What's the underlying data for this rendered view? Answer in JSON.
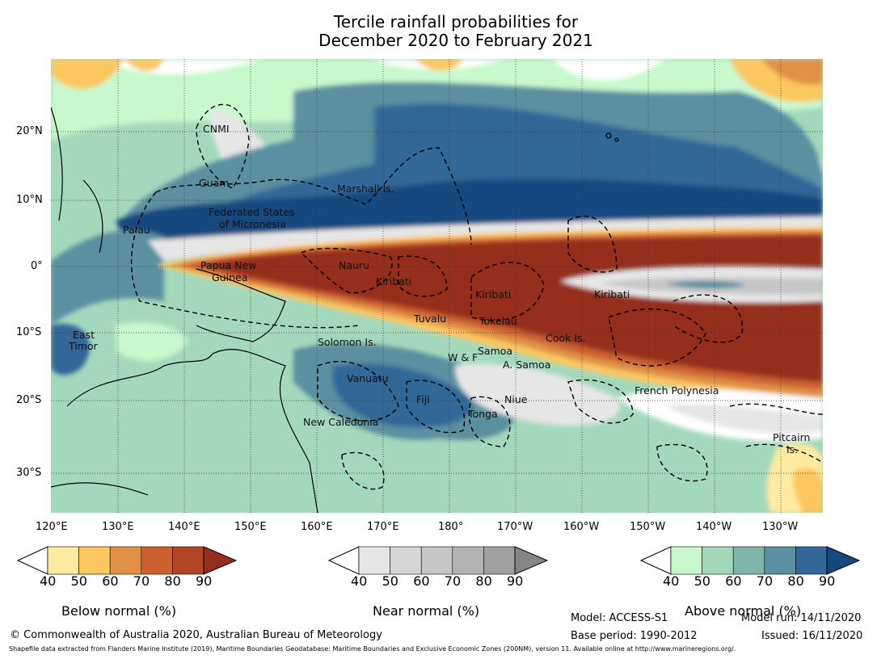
{
  "title": {
    "line1": "Tercile rainfall probabilities for",
    "line2": "December 2020 to February 2021"
  },
  "axes": {
    "lon_ticks": [
      "120°E",
      "130°E",
      "140°E",
      "150°E",
      "160°E",
      "170°E",
      "180°",
      "170°W",
      "160°W",
      "150°W",
      "140°W",
      "130°W"
    ],
    "lat_ticks": [
      "20°N",
      "10°N",
      "0°",
      "10°S",
      "20°S",
      "30°S"
    ]
  },
  "regions": [
    "CNMI",
    "Guam",
    "Marshall Is.",
    "Federated States",
    "of Micronesia",
    "Palau",
    "Papua New",
    "Guinea",
    "Nauru",
    "Kiribati",
    "Kiribati",
    "Kiribati",
    "Tuvalu",
    "Tokelau",
    "Cook Is.",
    "Solomon Is.",
    "Samoa",
    "W & F",
    "A. Samoa",
    "Vanuatu",
    "Fiji",
    "Niue",
    "Tonga",
    "New Caledonia",
    "French Polynesia",
    "Pitcairn",
    "Is.",
    "East",
    "Timor"
  ],
  "colorbars": [
    {
      "label": "Below normal (%)",
      "ticks": [
        "40",
        "50",
        "60",
        "70",
        "80",
        "90"
      ],
      "colors": [
        "#ffffff",
        "#feeb9f",
        "#fdc761",
        "#e09147",
        "#cc6130",
        "#b04624",
        "#962e1f"
      ]
    },
    {
      "label": "Near normal (%)",
      "ticks": [
        "40",
        "50",
        "60",
        "70",
        "80",
        "90"
      ],
      "colors": [
        "#ffffff",
        "#e6e6e6",
        "#d6d6d6",
        "#c6c6c6",
        "#b3b3b3",
        "#a0a0a0",
        "#858585"
      ]
    },
    {
      "label": "Above normal (%)",
      "ticks": [
        "40",
        "50",
        "60",
        "70",
        "80",
        "90"
      ],
      "colors": [
        "#ffffff",
        "#c8f8cc",
        "#a4d8bc",
        "#80b4aa",
        "#5a90a0",
        "#336798",
        "#15497f"
      ]
    }
  ],
  "footer": {
    "copyright": "© Commonwealth of Australia 2020, Australian Bureau of Meteorology",
    "model": "Model: ACCESS-S1",
    "base_period": "Base period: 1990-2012",
    "model_run": "Model run: 14/11/2020",
    "issued": "Issued: 16/11/2020",
    "shapefile": "Shapefile data extracted from Flanders Marine Institute (2019), Maritime Boundaries Geodatabase: Maritime Boundaries and Exclusive Economic Zones (200NM), version 11. Available online at http://www.marineregions.org/."
  }
}
